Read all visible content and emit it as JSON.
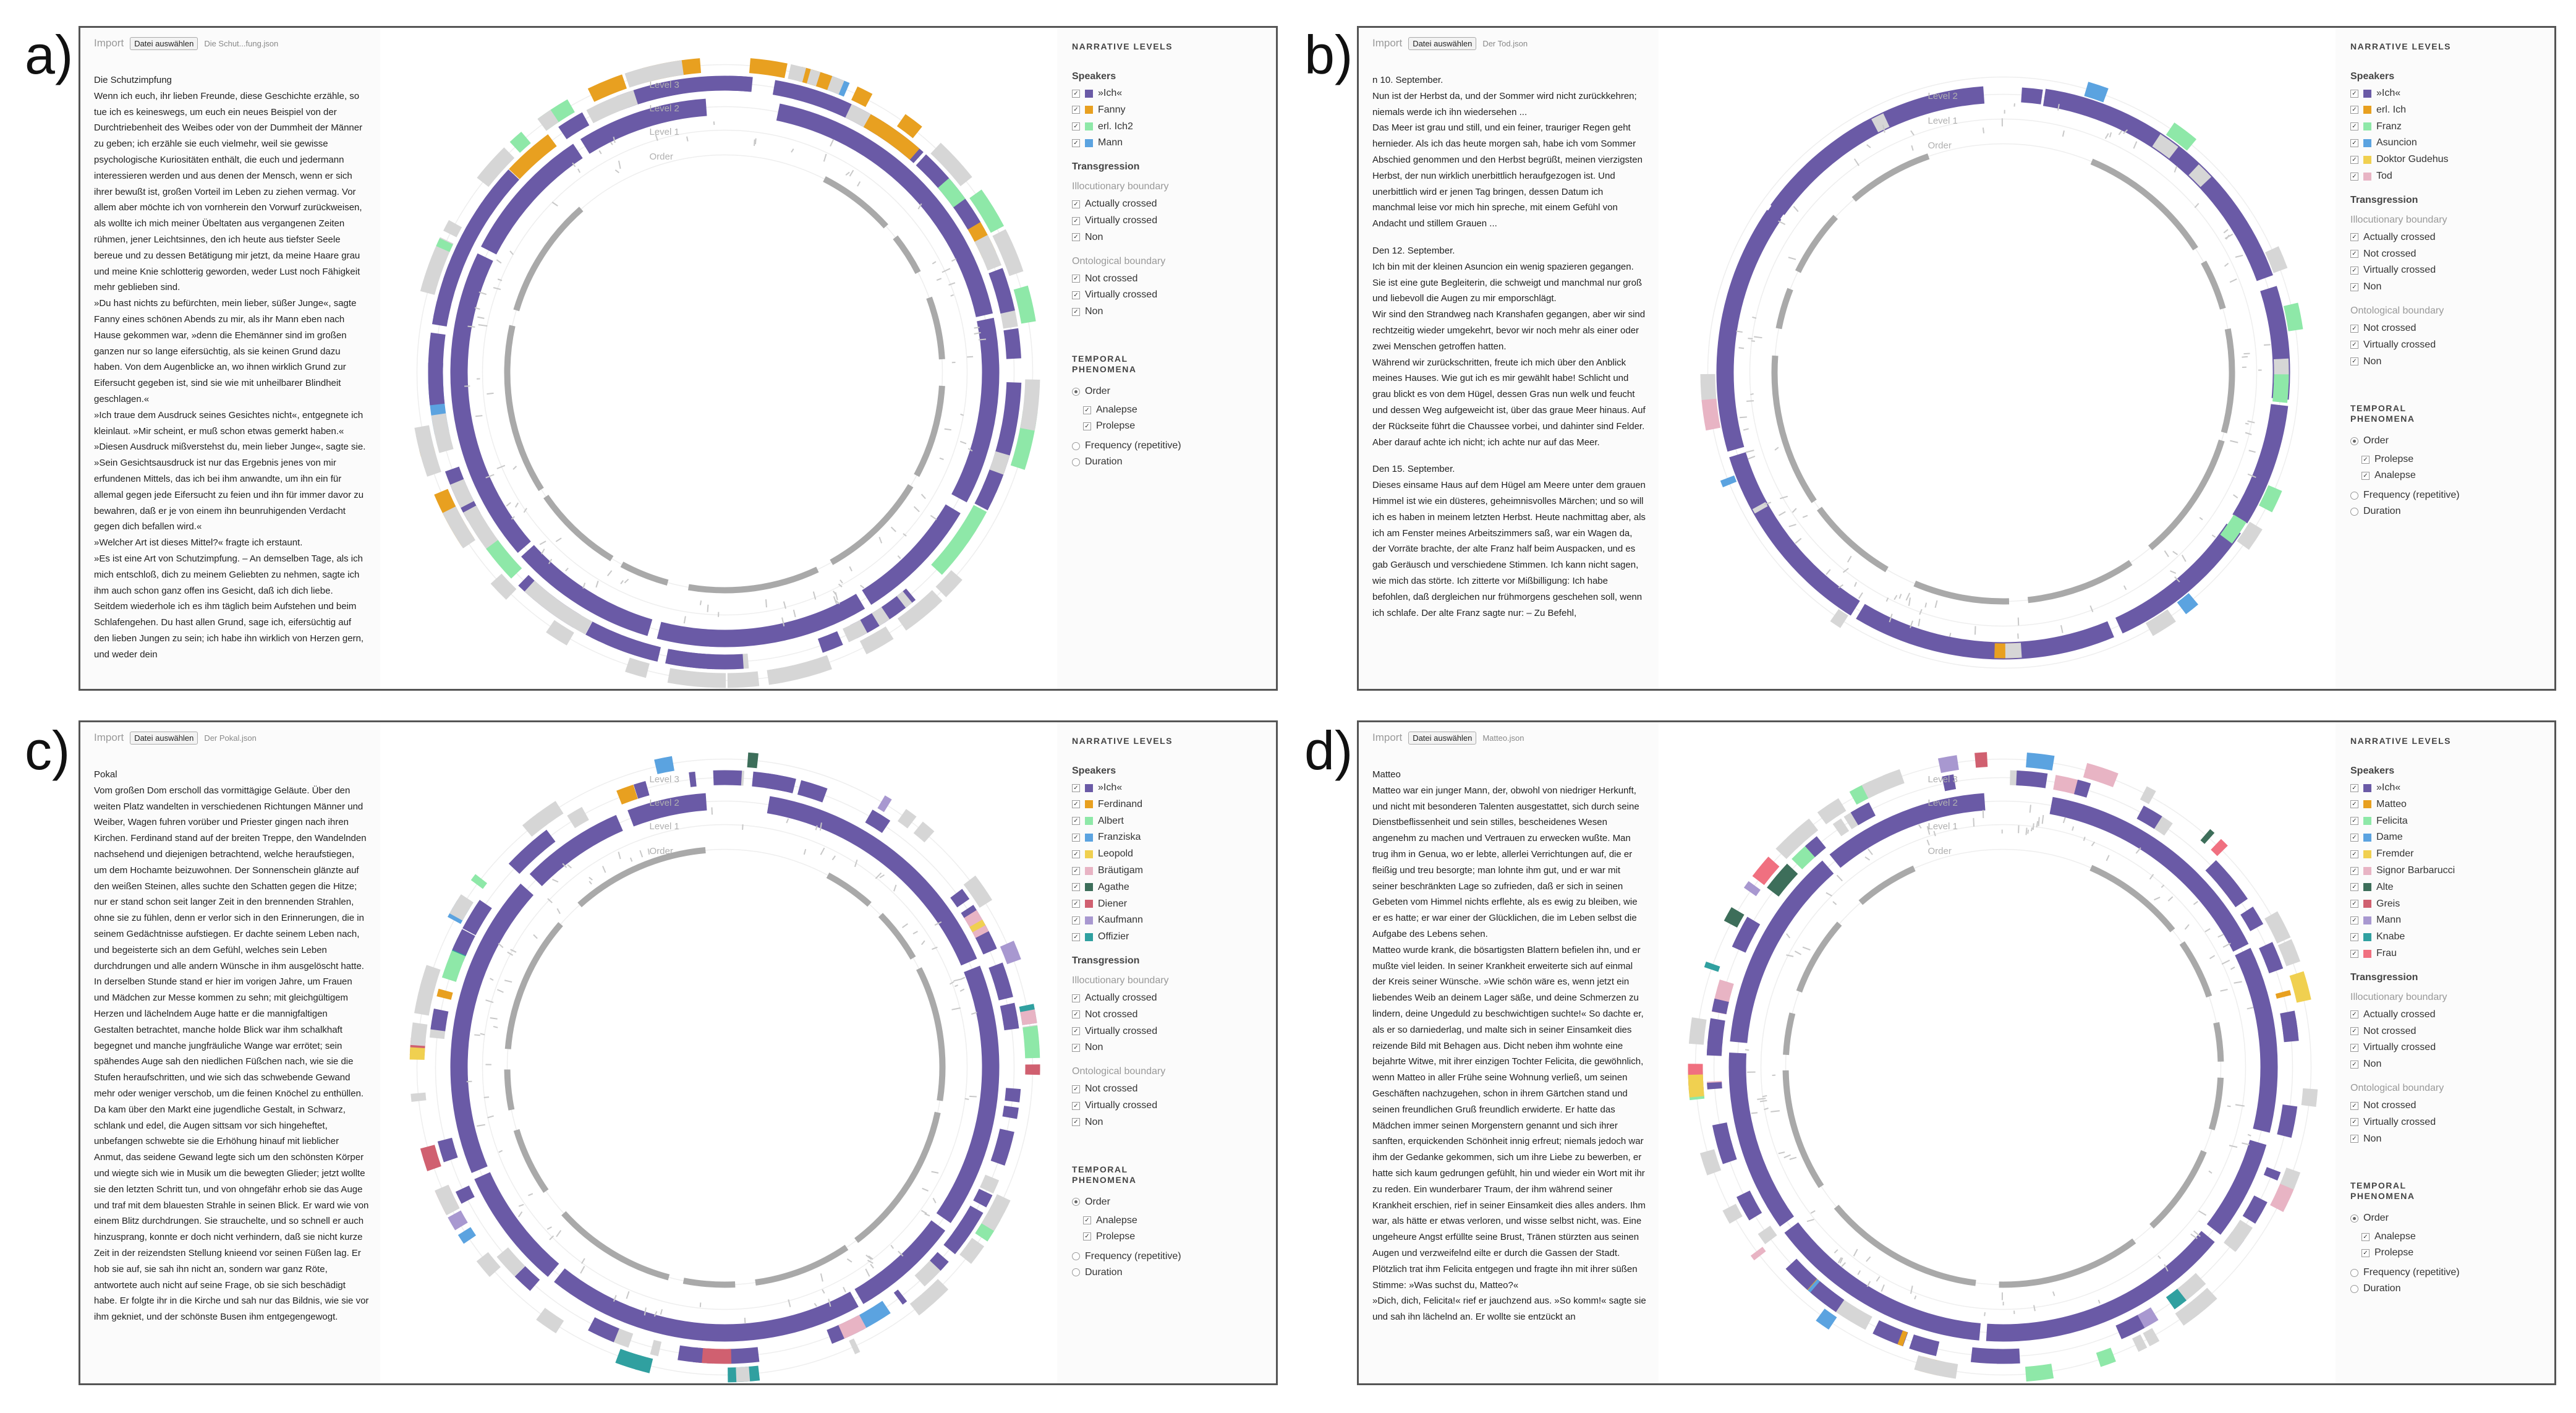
{
  "colors": {
    "ich": "#6a5aa6",
    "order_gray": "#a9a9a9",
    "faint_gray": "#d6d6d6"
  },
  "common": {
    "import_label": "Import",
    "file_button": "Datei auswählen",
    "level_labels": [
      "Level 3",
      "Level 2",
      "Level 1",
      "Order"
    ],
    "narrative_title": "NARRATIVE LEVELS",
    "speakers_title": "Speakers",
    "transgression_title": "Transgression",
    "illocutionary_title": "Illocutionary boundary",
    "ontological_title": "Ontological boundary",
    "temporal_title": "TEMPORAL PHENOMENA",
    "order_label": "Order",
    "frequency_label": "Frequency (repetitive)",
    "duration_label": "Duration"
  },
  "panels": [
    {
      "label": "a)",
      "file": "Die Schut...fung.json",
      "levels_shown": 3,
      "story": [
        "Die Schutzimpfung",
        "Wenn ich euch, ihr lieben Freunde, diese Geschichte erzähle, so tue ich es keineswegs, um euch ein neues Beispiel von der Durchtriebenheit des Weibes oder von der Dummheit der Männer zu geben; ich erzähle sie euch vielmehr, weil sie gewisse psychologische Kuriositäten enthält, die euch und jedermann interessieren werden und aus denen der Mensch, wenn er sich ihrer bewußt ist, großen Vorteil im Leben zu ziehen vermag. Vor allem aber möchte ich von vornherein den Vorwurf zurückweisen, als wollte ich mich meiner Übeltaten aus vergangenen Zeiten rühmen, jener Leichtsinnes, den ich heute aus tiefster Seele bereue und zu dessen Betätigung mir jetzt, da meine Haare grau und meine Knie schlotterig geworden, weder Lust noch Fähigkeit mehr geblieben sind.",
        "»Du hast nichts zu befürchten, mein lieber, süßer Junge«, sagte Fanny eines schönen Abends zu mir, als ihr Mann eben nach Hause gekommen war, »denn die Ehemänner sind im großen ganzen nur so lange eifersüchtig, als sie keinen Grund dazu haben. Von dem Augenblicke an, wo ihnen wirklich Grund zur Eifersucht gegeben ist, sind sie wie mit unheilbarer Blindheit geschlagen.«",
        "»Ich traue dem Ausdruck seines Gesichtes nicht«, entgegnete ich kleinlaut. »Mir scheint, er muß schon etwas gemerkt haben.«",
        "»Diesen Ausdruck mißverstehst du, mein lieber Junge«, sagte sie. »Sein Gesichtsausdruck ist nur das Ergebnis jenes von mir erfundenen Mittels, das ich bei ihm anwandte, um ihn ein für allemal gegen jede Eifersucht zu feien und ihn für immer davor zu bewahren, daß er je von einem ihn beunruhigenden Verdacht gegen dich befallen wird.«",
        "»Welcher Art ist dieses Mittel?« fragte ich erstaunt.",
        "»Es ist eine Art von Schutzimpfung. – An demselben Tage, als ich mich entschloß, dich zu meinem Geliebten zu nehmen, sagte ich ihm auch schon ganz offen ins Gesicht, daß ich dich liebe. Seitdem wiederhole ich es ihm täglich beim Aufstehen und beim Schlafengehen. Du hast allen Grund, sage ich, eifersüchtig auf den lieben Jungen zu sein; ich habe ihn wirklich von Herzen gern, und weder dein"
      ],
      "speakers": [
        {
          "name": "»Ich«",
          "color": "#6a5aa6"
        },
        {
          "name": "Fanny",
          "color": "#e8a020"
        },
        {
          "name": "erl. Ich2",
          "color": "#8ee8a8"
        },
        {
          "name": "Mann",
          "color": "#5ba3e0"
        }
      ],
      "illocutionary": [
        "Actually crossed",
        "Virtually crossed",
        "Non"
      ],
      "ontological": [
        "Not crossed",
        "Virtually crossed",
        "Non"
      ],
      "order_subs": [
        "Analepse",
        "Prolepse"
      ]
    },
    {
      "label": "b)",
      "file": "Der Tod.json",
      "levels_shown": 2,
      "story": [
        "n 10. September.",
        "Nun ist der Herbst da, und der Sommer wird nicht zurückkehren; niemals werde ich ihn wiedersehen ...",
        "Das Meer ist grau und still, und ein feiner, trauriger Regen geht hernieder. Als ich das heute morgen sah, habe ich vom Sommer Abschied genommen und den Herbst begrüßt, meinen vierzigsten Herbst, der nun wirklich unerbittlich heraufgezogen ist. Und unerbittlich wird er jenen Tag bringen, dessen Datum ich manchmal leise vor mich hin spreche, mit einem Gefühl von Andacht und stillem Grauen ...",
        "",
        "Den 12. September.",
        "Ich bin mit der kleinen Asuncion ein wenig spazieren gegangen. Sie ist eine gute Begleiterin, die schweigt und manchmal nur groß und liebevoll die Augen zu mir emporschlägt.",
        "Wir sind den Strandweg nach Kranshafen gegangen, aber wir sind rechtzeitig wieder umgekehrt, bevor wir noch mehr als einer oder zwei Menschen getroffen hatten.",
        "Während wir zurückschritten, freute ich mich über den Anblick meines Hauses. Wie gut ich es mir gewählt habe! Schlicht und grau blickt es von dem Hügel, dessen Gras nun welk und feucht und dessen Weg aufgeweicht ist, über das graue Meer hinaus. Auf der Rückseite führt die Chaussee vorbei, und dahinter sind Felder. Aber darauf achte ich nicht; ich achte nur auf das Meer.",
        "",
        "Den 15. September.",
        "Dieses einsame Haus auf dem Hügel am Meere unter dem grauen Himmel ist wie ein düsteres, geheimnisvolles Märchen; und so will ich es haben in meinem letzten Herbst. Heute nachmittag aber, als ich am Fenster meines Arbeitszimmers saß, war ein Wagen da, der Vorräte brachte, der alte Franz half beim Auspacken, und es gab Geräusch und verschiedene Stimmen. Ich kann nicht sagen, wie mich das störte. Ich zitterte vor Mißbilligung: Ich habe befohlen, daß dergleichen nur frühmorgens geschehen soll, wenn ich schlafe. Der alte Franz sagte nur: – Zu Befehl,"
      ],
      "speakers": [
        {
          "name": "»Ich«",
          "color": "#6a5aa6"
        },
        {
          "name": "erl. Ich",
          "color": "#e8a020"
        },
        {
          "name": "Franz",
          "color": "#8ee8a8"
        },
        {
          "name": "Asuncion",
          "color": "#5ba3e0"
        },
        {
          "name": "Doktor Gudehus",
          "color": "#f0d050"
        },
        {
          "name": "Tod",
          "color": "#e8b4c4"
        }
      ],
      "illocutionary": [
        "Actually crossed",
        "Not crossed",
        "Virtually crossed",
        "Non"
      ],
      "ontological": [
        "Not crossed",
        "Virtually crossed",
        "Non"
      ],
      "order_subs": [
        "Prolepse",
        "Analepse"
      ]
    },
    {
      "label": "c)",
      "file": "Der Pokal.json",
      "levels_shown": 3,
      "story": [
        "Pokal",
        "Vom großen Dom erscholl das vormittägige Geläute. Über den weiten Platz wandelten in verschiedenen Richtungen Männer und Weiber, Wagen fuhren vorüber und Priester gingen nach ihren Kirchen. Ferdinand stand auf der breiten Treppe, den Wandelnden nachsehend und diejenigen betrachtend, welche heraufstiegen, um dem Hochamte beizuwohnen. Der Sonnenschein glänzte auf den weißen Steinen, alles suchte den Schatten gegen die Hitze; nur er stand schon seit langer Zeit in den brennenden Strahlen, ohne sie zu fühlen, denn er verlor sich in den Erinnerungen, die in seinem Gedächtnisse aufstiegen. Er dachte seinem Leben nach, und begeisterte sich an dem Gefühl, welches sein Leben durchdrungen und alle andern Wünsche in ihm ausgelöscht hatte. In derselben Stunde stand er hier im vorigen Jahre, um Frauen und Mädchen zur Messe kommen zu sehn; mit gleichgültigem Herzen und lächelndem Auge hatte er die mannigfaltigen Gestalten betrachtet, manche holde Blick war ihm schalkhaft begegnet und manche jungfräuliche Wange war errötet; sein spähendes Auge sah den niedlichen Füßchen nach, wie sie die Stufen heraufschritten, und wie sich das schwebende Gewand mehr oder weniger verschob, um die feinen Knöchel zu enthüllen. Da kam über den Markt eine jugendliche Gestalt, in Schwarz, schlank und edel, die Augen sittsam vor sich hingeheftet, unbefangen schwebte sie die Erhöhung hinauf mit lieblicher Anmut, das seidene Gewand legte sich um den schönsten Körper und wiegte sich wie in Musik um die bewegten Glieder; jetzt wollte sie den letzten Schritt tun, und von ohngefähr erhob sie das Auge und traf mit dem blauesten Strahle in seinen Blick. Er ward wie von einem Blitz durchdrungen. Sie strauchelte, und so schnell er auch hinzusprang, konnte er doch nicht verhindern, daß sie nicht kurze Zeit in der reizendsten Stellung knieend vor seinen Füßen lag. Er hob sie auf, sie sah ihn nicht an, sondern war ganz Röte, antwortete auch nicht auf seine Frage, ob sie sich beschädigt habe. Er folgte ihr in die Kirche und sah nur das Bildnis, wie sie vor ihm gekniet, und der schönste Busen ihm entgegengewogt."
      ],
      "speakers": [
        {
          "name": "»Ich«",
          "color": "#6a5aa6"
        },
        {
          "name": "Ferdinand",
          "color": "#e8a020"
        },
        {
          "name": "Albert",
          "color": "#8ee8a8"
        },
        {
          "name": "Franziska",
          "color": "#5ba3e0"
        },
        {
          "name": "Leopold",
          "color": "#f0d050"
        },
        {
          "name": "Bräutigam",
          "color": "#e8b4c4"
        },
        {
          "name": "Agathe",
          "color": "#3d6e5a"
        },
        {
          "name": "Diener",
          "color": "#d06070"
        },
        {
          "name": "Kaufmann",
          "color": "#a898d0"
        },
        {
          "name": "Offizier",
          "color": "#30a0a0"
        }
      ],
      "illocutionary": [
        "Actually crossed",
        "Not crossed",
        "Virtually crossed",
        "Non"
      ],
      "ontological": [
        "Not crossed",
        "Virtually crossed",
        "Non"
      ],
      "order_subs": [
        "Analepse",
        "Prolepse"
      ]
    },
    {
      "label": "d)",
      "file": "Matteo.json",
      "levels_shown": 3,
      "story": [
        "Matteo",
        "Matteo war ein junger Mann, der, obwohl von niedriger Herkunft, und nicht mit besonderen Talenten ausgestattet, sich durch seine Dienstbeflissenheit und sein stilles, bescheidenes Wesen angenehm zu machen und Vertrauen zu erwecken wußte. Man trug ihm in Genua, wo er lebte, allerlei Verrichtungen auf, die er fleißig und treu besorgte; man lohnte ihm gut, und er war mit seiner beschränkten Lage so zufrieden, daß er sich in seinen Gebeten vom Himmel nichts erflehte, als es ewig zu bleiben, wie er es hatte; er war einer der Glücklichen, die im Leben selbst die Aufgabe des Lebens sehen.",
        "Matteo wurde krank, die bösartigsten Blattern befielen ihn, und er mußte viel leiden. In seiner Krankheit erweiterte sich auf einmal der Kreis seiner Wünsche. »Wie schön wäre es, wenn jetzt ein liebendes Weib an deinem Lager säße, und deine Schmerzen zu lindern, deine Ungeduld zu beschwichtigen suchte!« So dachte er, als er so darniederlag, und malte sich in seiner Einsamkeit dies reizende Bild mit Behagen aus. Dicht neben ihm wohnte eine bejahrte Witwe, mit ihrer einzigen Tochter Felicita, die gewöhnlich, wenn Matteo in aller Frühe seine Wohnung verließ, um seinen Geschäften nachzugehen, schon in ihrem Gärtchen stand und seinen freundlichen Gruß freundlich erwiderte. Er hatte das Mädchen immer seinen Morgenstern genannt und sich ihrer sanften, erquickenden Schönheit innig erfreut; niemals jedoch war ihm der Gedanke gekommen, sich um ihre Liebe zu bewerben, er hatte sich kaum gedrungen gefühlt, hin und wieder ein Wort mit ihr zu reden. Ein wunderbarer Traum, der ihm während seiner Krankheit erschien, rief in seiner Einsamkeit dies alles anders. Ihm war, als hätte er etwas verloren, und wisse selbst nicht, was. Eine ungeheure Angst erfüllte seine Brust, Tränen stürzten aus seinen Augen und verzweifelnd eilte er durch die Gassen der Stadt. Plötzlich trat ihm Felicita entgegen und fragte ihn mit ihrer süßen Stimme: »Was suchst du, Matteo?«",
        "»Dich, dich, Felicita!« rief er jauchzend aus. »So komm!« sagte sie und sah ihn lächelnd an. Er wollte sie entzückt an"
      ],
      "speakers": [
        {
          "name": "»Ich«",
          "color": "#6a5aa6"
        },
        {
          "name": "Matteo",
          "color": "#e8a020"
        },
        {
          "name": "Felicita",
          "color": "#8ee8a8"
        },
        {
          "name": "Dame",
          "color": "#5ba3e0"
        },
        {
          "name": "Fremder",
          "color": "#f0d050"
        },
        {
          "name": "Signor Barbarucci",
          "color": "#e8b4c4"
        },
        {
          "name": "Alte",
          "color": "#3d6e5a"
        },
        {
          "name": "Greis",
          "color": "#d06070"
        },
        {
          "name": "Mann",
          "color": "#a898d0"
        },
        {
          "name": "Knabe",
          "color": "#30a0a0"
        },
        {
          "name": "Frau",
          "color": "#f07080"
        }
      ],
      "illocutionary": [
        "Actually crossed",
        "Not crossed",
        "Virtually crossed",
        "Non"
      ],
      "ontological": [
        "Not crossed",
        "Virtually crossed",
        "Non"
      ],
      "order_subs": [
        "Analepse",
        "Prolepse"
      ]
    }
  ]
}
